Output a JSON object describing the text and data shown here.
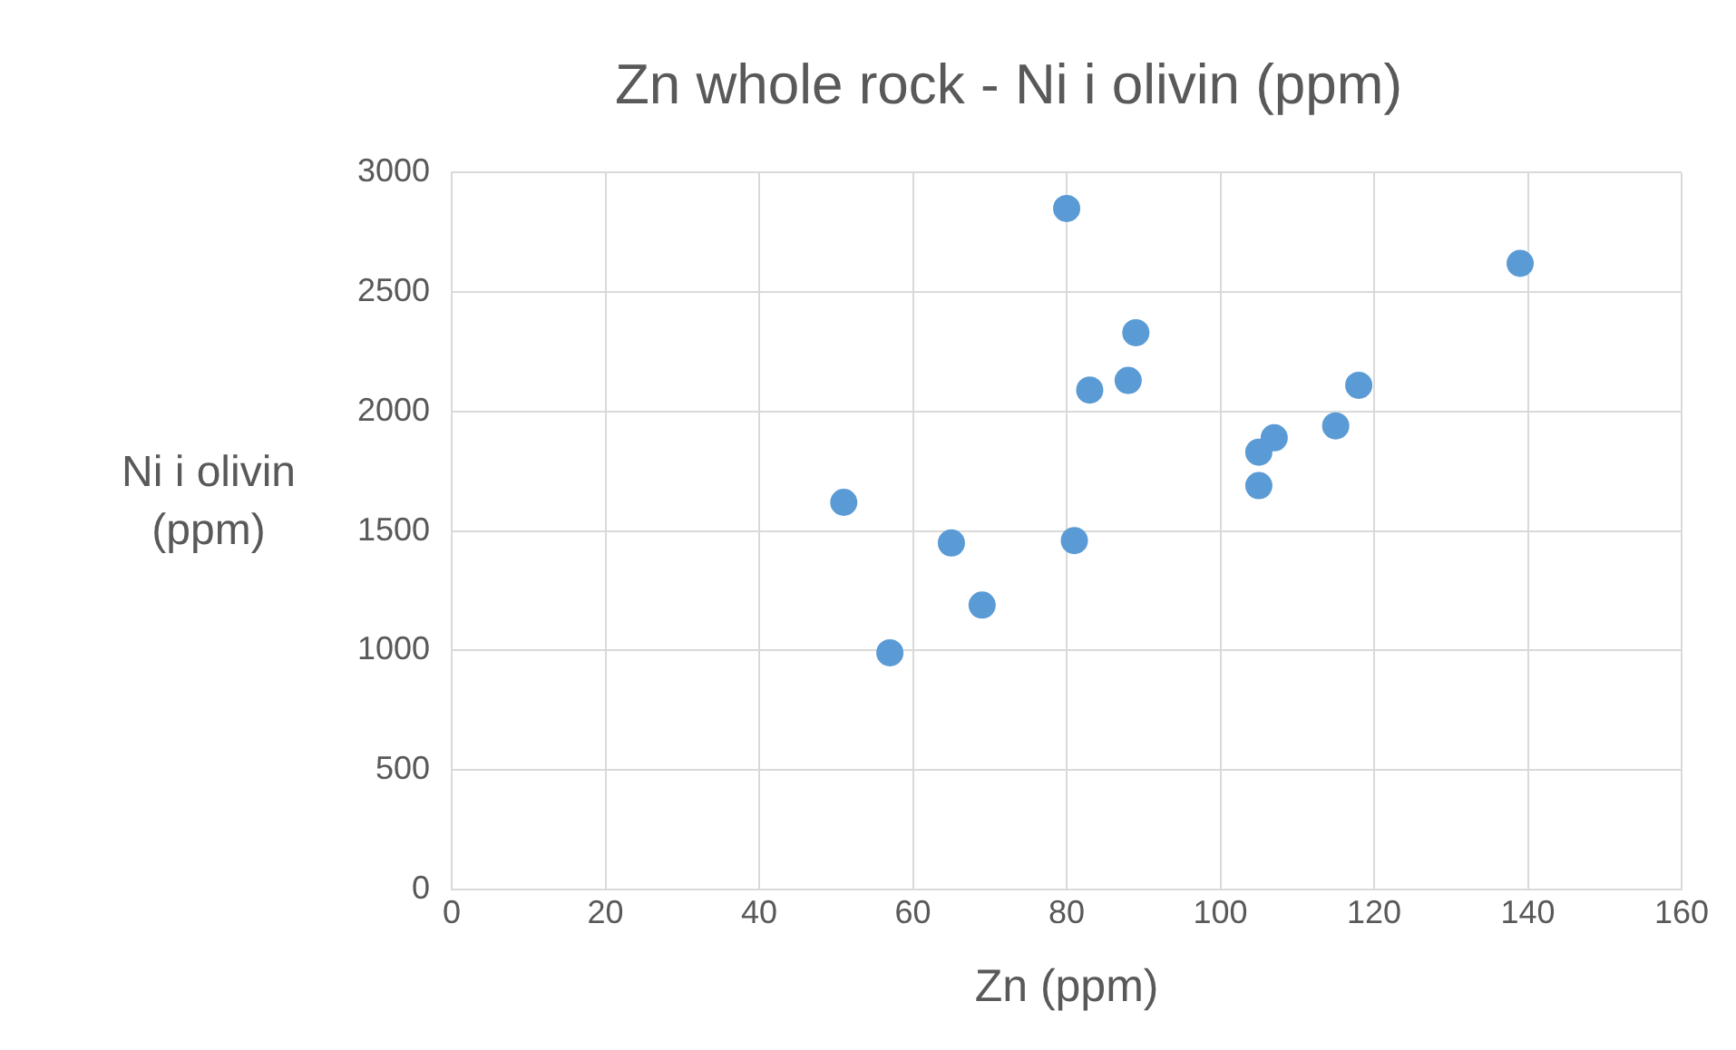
{
  "chart_data": {
    "type": "scatter",
    "title": "Zn whole rock - Ni i olivin (ppm)",
    "xlabel": "Zn (ppm)",
    "ylabel": "Ni i olivin (ppm)",
    "x": [
      51,
      57,
      65,
      69,
      80,
      81,
      83,
      88,
      89,
      105,
      105,
      107,
      115,
      118,
      139
    ],
    "series": [
      {
        "color": "#5b9bd5",
        "values": [
          1620,
          990,
          1450,
          1190,
          2850,
          1460,
          2090,
          2130,
          2330,
          1830,
          1690,
          1890,
          1940,
          2110,
          2620
        ]
      }
    ],
    "xlim": [
      0,
      160
    ],
    "xticks": [
      0,
      20,
      40,
      60,
      80,
      100,
      120,
      140,
      160
    ],
    "ylim": [
      0,
      3000
    ],
    "yticks": [
      0,
      500,
      1000,
      1500,
      2000,
      2500,
      3000
    ],
    "grid": true,
    "legend": false,
    "marker": "circle"
  }
}
